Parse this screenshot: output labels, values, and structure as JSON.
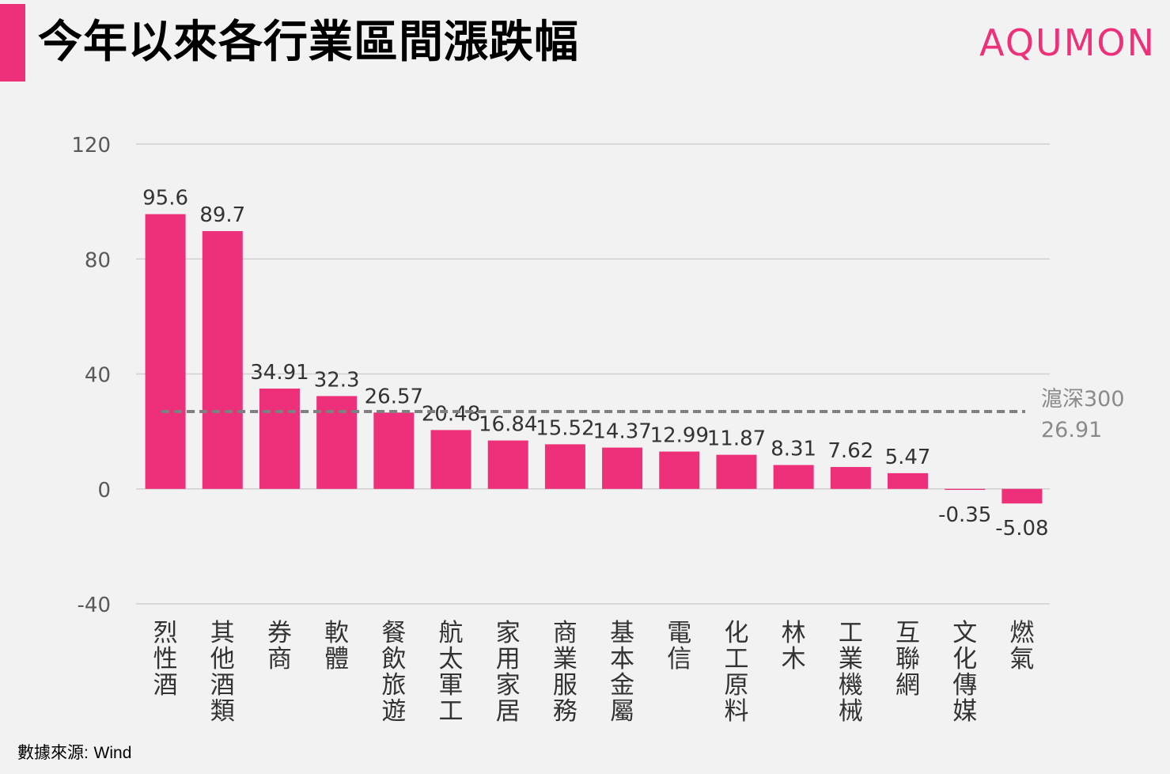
{
  "header": {
    "title": "今年以來各行業區間漲跌幅",
    "logo": "AQUMON"
  },
  "footer": {
    "source_label": "數據來源:",
    "source_value": "Wind"
  },
  "colors": {
    "accent": "#ee2f7a",
    "bar": "#ee2f7a",
    "reference_line": "#808080",
    "grid": "#d0d0d0",
    "text": "#333333"
  },
  "chart_data": {
    "type": "bar",
    "categories": [
      "烈性酒",
      "其他酒類",
      "券商",
      "軟體",
      "餐飲旅遊",
      "航太軍工",
      "家用家居",
      "商業服務",
      "基本金屬",
      "電信",
      "化工原料",
      "林木",
      "工業機械",
      "互聯網",
      "文化傳媒",
      "燃氣"
    ],
    "values": [
      95.6,
      89.7,
      34.91,
      32.3,
      26.57,
      20.48,
      16.84,
      15.52,
      14.37,
      12.99,
      11.87,
      8.31,
      7.62,
      5.47,
      -0.35,
      -5.08
    ],
    "value_labels": [
      "95.6",
      "89.7",
      "34.91",
      "32.3",
      "26.57",
      "20.48",
      "16.84",
      "15.52",
      "14.37",
      "12.99",
      "11.87",
      "8.31",
      "7.62",
      "5.47",
      "-0.35",
      "-5.08"
    ],
    "yticks": [
      "120",
      "80",
      "40",
      "0",
      "-40"
    ],
    "ylim": [
      -40,
      120
    ],
    "reference": {
      "name": "滬深300",
      "value": 26.91,
      "label": "26.91"
    },
    "grid": true,
    "xlabel": "",
    "ylabel": ""
  }
}
